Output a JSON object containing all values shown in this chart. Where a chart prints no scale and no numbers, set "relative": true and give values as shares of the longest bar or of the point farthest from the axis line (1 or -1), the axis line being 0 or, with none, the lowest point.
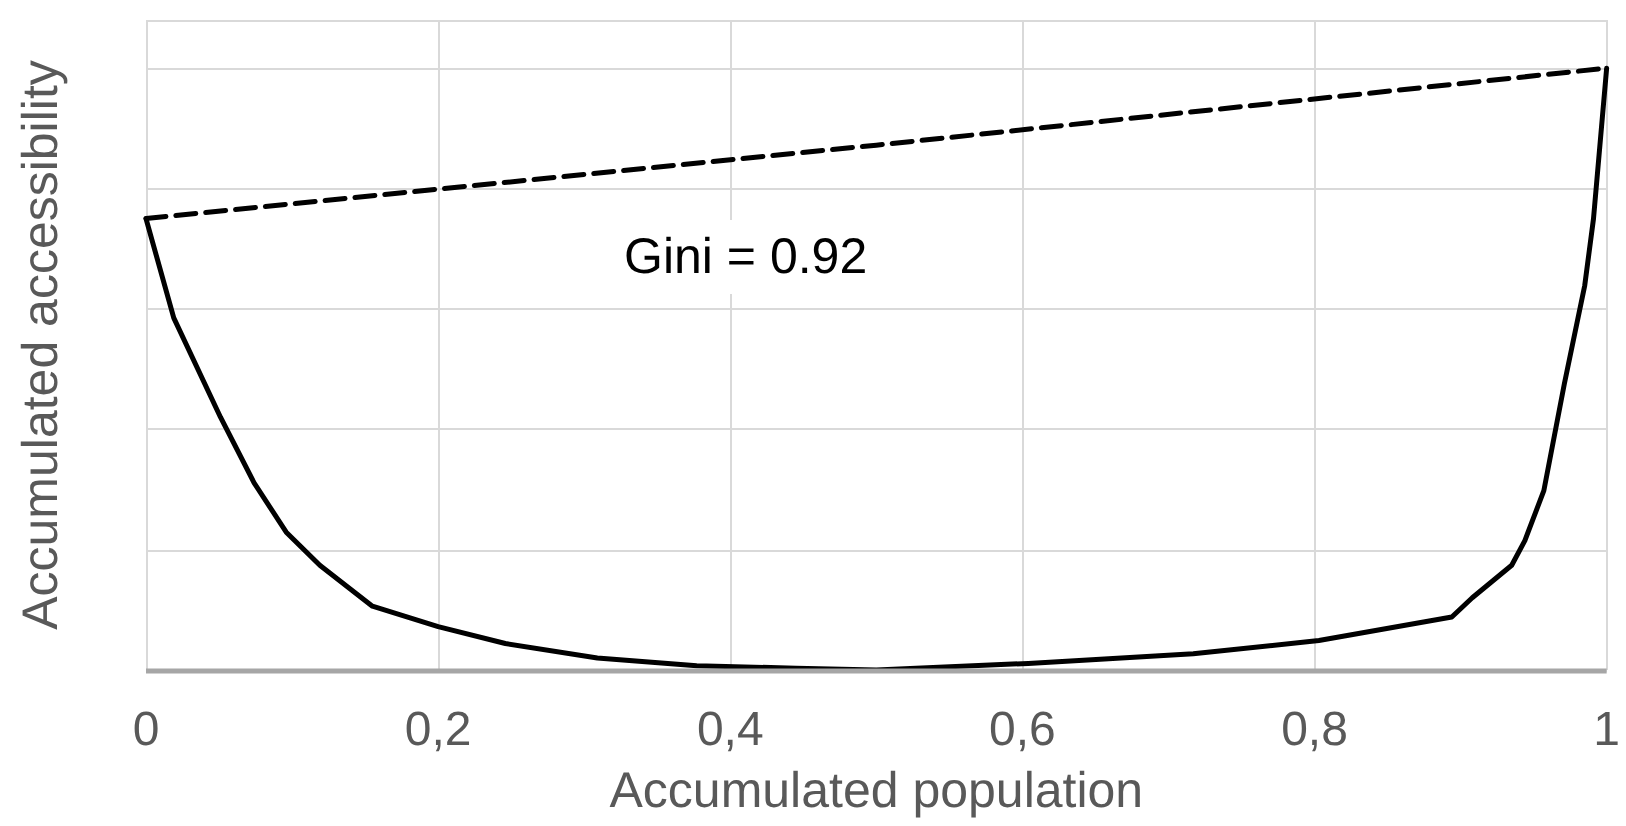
{
  "chart_data": {
    "type": "line",
    "relative": true,
    "xlabel": "Accumulated population",
    "ylabel": "Accumulated accessibility",
    "xlim": [
      0,
      1
    ],
    "xticks": [
      0,
      {
        "value": 0.2,
        "label": "0,2"
      },
      {
        "value": 0.4,
        "label": "0,4"
      },
      {
        "value": 0.6,
        "label": "0,6"
      },
      {
        "value": 0.8,
        "label": "0,8"
      },
      1
    ],
    "grid": true,
    "marker": "none",
    "annotations": [
      "Gini = 0.92"
    ],
    "series": [
      {
        "color": "#000000",
        "line_style": "dashed",
        "x": [
          0,
          0.5,
          1
        ],
        "values": [
          0.75,
          0.872,
          1
        ]
      },
      {
        "color": "#000000",
        "line_style": "solid",
        "x": [
          0,
          0.019,
          0.051,
          0.074,
          0.096,
          0.119,
          0.155,
          0.2,
          0.246,
          0.309,
          0.377,
          0.445,
          0.5,
          0.604,
          0.717,
          0.803,
          0.894,
          0.908,
          0.935,
          0.944,
          0.957,
          0.971,
          0.985,
          0.991,
          1
        ],
        "values": [
          0.75,
          0.585,
          0.42,
          0.311,
          0.229,
          0.174,
          0.106,
          0.072,
          0.044,
          0.02,
          0.007,
          0.003,
          0,
          0.011,
          0.027,
          0.049,
          0.088,
          0.12,
          0.174,
          0.215,
          0.298,
          0.475,
          0.639,
          0.75,
          1
        ]
      }
    ]
  }
}
